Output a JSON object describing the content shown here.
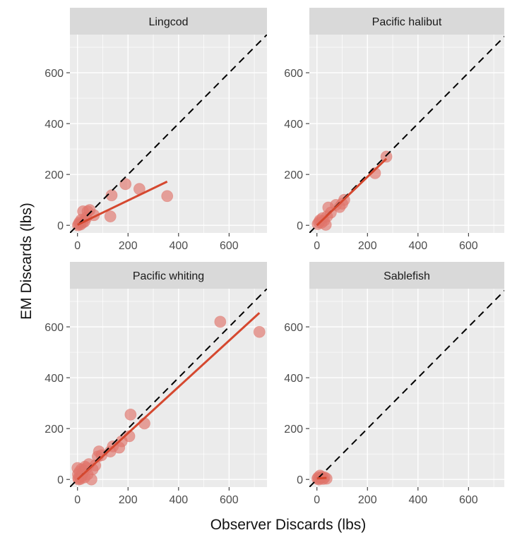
{
  "figure": {
    "xlabel": "Observer Discards (lbs)",
    "ylabel": "EM Discards (lbs)"
  },
  "colors": {
    "panel_bg": "#ebebeb",
    "strip_bg": "#d9d9d9",
    "grid": "#ffffff",
    "points": "#e0756b",
    "fit_line": "#d5482f",
    "identity_line": "#000000",
    "tick_text": "#4d4d4d"
  },
  "chart_data": [
    {
      "type": "scatter",
      "title": "Lingcod",
      "xlim": [
        -30,
        750
      ],
      "ylim": [
        -30,
        750
      ],
      "x_ticks": [
        0,
        200,
        400,
        600
      ],
      "y_ticks": [
        0,
        200,
        400,
        600
      ],
      "reference_line": "y = x (dashed)",
      "points": [
        {
          "x": 2,
          "y": 0
        },
        {
          "x": 5,
          "y": 5
        },
        {
          "x": 8,
          "y": 12
        },
        {
          "x": 12,
          "y": 3
        },
        {
          "x": 15,
          "y": 22
        },
        {
          "x": 20,
          "y": 10
        },
        {
          "x": 22,
          "y": 55
        },
        {
          "x": 28,
          "y": 15
        },
        {
          "x": 35,
          "y": 30
        },
        {
          "x": 40,
          "y": 55
        },
        {
          "x": 48,
          "y": 60
        },
        {
          "x": 65,
          "y": 40
        },
        {
          "x": 130,
          "y": 35
        },
        {
          "x": 135,
          "y": 118
        },
        {
          "x": 190,
          "y": 162
        },
        {
          "x": 245,
          "y": 143
        },
        {
          "x": 355,
          "y": 115
        }
      ],
      "fit": [
        {
          "x": 0,
          "y": 2
        },
        {
          "x": 355,
          "y": 172
        }
      ]
    },
    {
      "type": "scatter",
      "title": "Pacific halibut",
      "xlim": [
        -30,
        750
      ],
      "ylim": [
        -30,
        750
      ],
      "x_ticks": [
        0,
        200,
        400,
        600
      ],
      "y_ticks": [
        0,
        200,
        400,
        600
      ],
      "reference_line": "y = x (dashed)",
      "points": [
        {
          "x": 3,
          "y": 5
        },
        {
          "x": 8,
          "y": 12
        },
        {
          "x": 12,
          "y": 20
        },
        {
          "x": 18,
          "y": 10
        },
        {
          "x": 22,
          "y": 28
        },
        {
          "x": 28,
          "y": 18
        },
        {
          "x": 35,
          "y": 2
        },
        {
          "x": 40,
          "y": 35
        },
        {
          "x": 45,
          "y": 70
        },
        {
          "x": 55,
          "y": 50
        },
        {
          "x": 75,
          "y": 80
        },
        {
          "x": 90,
          "y": 72
        },
        {
          "x": 100,
          "y": 85
        },
        {
          "x": 108,
          "y": 100
        },
        {
          "x": 230,
          "y": 205
        },
        {
          "x": 275,
          "y": 270
        }
      ],
      "fit": [
        {
          "x": 0,
          "y": 0
        },
        {
          "x": 275,
          "y": 262
        }
      ]
    },
    {
      "type": "scatter",
      "title": "Pacific whiting",
      "xlim": [
        -30,
        750
      ],
      "ylim": [
        -30,
        750
      ],
      "x_ticks": [
        0,
        200,
        400,
        600
      ],
      "y_ticks": [
        0,
        200,
        400,
        600
      ],
      "reference_line": "y = x (dashed)",
      "points": [
        {
          "x": 0,
          "y": 45
        },
        {
          "x": 2,
          "y": 20
        },
        {
          "x": 3,
          "y": 5
        },
        {
          "x": 5,
          "y": 0
        },
        {
          "x": 8,
          "y": 30
        },
        {
          "x": 10,
          "y": 10
        },
        {
          "x": 12,
          "y": 2
        },
        {
          "x": 15,
          "y": 40
        },
        {
          "x": 18,
          "y": 15
        },
        {
          "x": 20,
          "y": 25
        },
        {
          "x": 25,
          "y": 35
        },
        {
          "x": 28,
          "y": 8
        },
        {
          "x": 30,
          "y": 50
        },
        {
          "x": 35,
          "y": 45
        },
        {
          "x": 40,
          "y": 20
        },
        {
          "x": 45,
          "y": 60
        },
        {
          "x": 55,
          "y": 0
        },
        {
          "x": 60,
          "y": 40
        },
        {
          "x": 70,
          "y": 55
        },
        {
          "x": 80,
          "y": 90
        },
        {
          "x": 85,
          "y": 110
        },
        {
          "x": 95,
          "y": 95
        },
        {
          "x": 130,
          "y": 110
        },
        {
          "x": 140,
          "y": 130
        },
        {
          "x": 165,
          "y": 125
        },
        {
          "x": 175,
          "y": 150
        },
        {
          "x": 205,
          "y": 170
        },
        {
          "x": 210,
          "y": 255
        },
        {
          "x": 265,
          "y": 220
        },
        {
          "x": 565,
          "y": 620
        },
        {
          "x": 720,
          "y": 580
        }
      ],
      "fit": [
        {
          "x": 0,
          "y": 0
        },
        {
          "x": 720,
          "y": 655
        }
      ]
    },
    {
      "type": "scatter",
      "title": "Sablefish",
      "xlim": [
        -30,
        750
      ],
      "ylim": [
        -30,
        750
      ],
      "x_ticks": [
        0,
        200,
        400,
        600
      ],
      "y_ticks": [
        0,
        200,
        400,
        600
      ],
      "reference_line": "y = x (dashed)",
      "points": [
        {
          "x": 2,
          "y": 3
        },
        {
          "x": 5,
          "y": 8
        },
        {
          "x": 8,
          "y": 0
        },
        {
          "x": 12,
          "y": 15
        },
        {
          "x": 15,
          "y": 5
        },
        {
          "x": 20,
          "y": 10
        },
        {
          "x": 25,
          "y": 2
        },
        {
          "x": 30,
          "y": 8
        },
        {
          "x": 38,
          "y": 3
        }
      ],
      "fit": [
        {
          "x": 0,
          "y": 4
        },
        {
          "x": 38,
          "y": 6
        }
      ]
    }
  ]
}
